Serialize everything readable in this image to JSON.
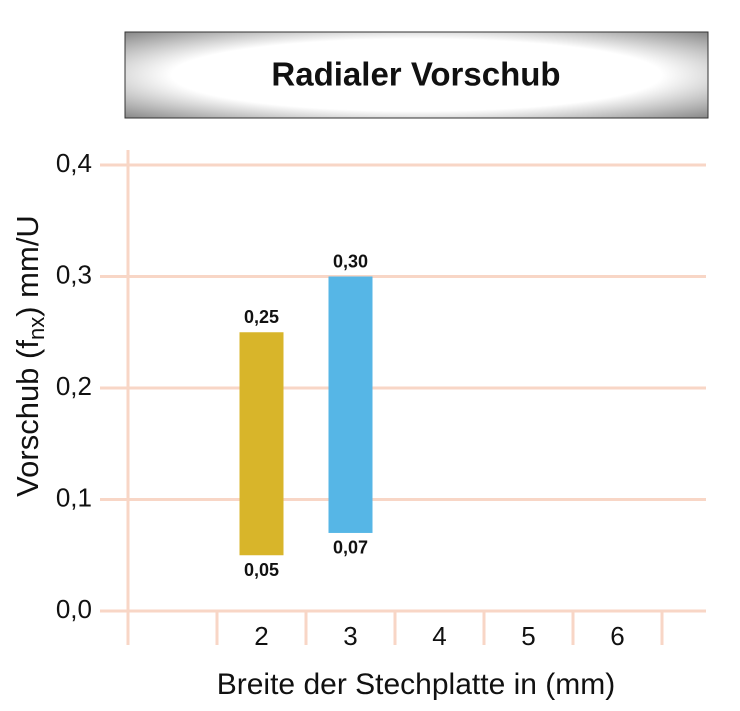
{
  "chart_data": {
    "type": "range-bar",
    "title": "Radialer Vorschub",
    "xlabel": "Breite der Stechplatte in (mm)",
    "ylabel": "Vorschub (f",
    "ylabel_sub": "nx",
    "ylabel_end": ") mm/U",
    "categories": [
      null,
      "2",
      "3",
      "4",
      "5",
      "6"
    ],
    "low": [
      null,
      0.05,
      0.07,
      null,
      null,
      null
    ],
    "high": [
      null,
      0.25,
      0.3,
      null,
      null,
      null
    ],
    "low_labels": [
      null,
      "0,05",
      "0,07",
      null,
      null,
      null
    ],
    "high_labels": [
      null,
      "0,25",
      "0,30",
      null,
      null,
      null
    ],
    "colors": [
      null,
      "#d8b52a",
      "#56b6e6",
      null,
      null,
      null
    ],
    "ylim": [
      0,
      0.4
    ],
    "yticks": [
      {
        "value": 0,
        "label": "0,0"
      },
      {
        "value": 0.1,
        "label": "0,1"
      },
      {
        "value": 0.2,
        "label": "0,2"
      },
      {
        "value": 0.3,
        "label": "0,3"
      },
      {
        "value": 0.4,
        "label": "0,4"
      }
    ],
    "grid": true
  }
}
